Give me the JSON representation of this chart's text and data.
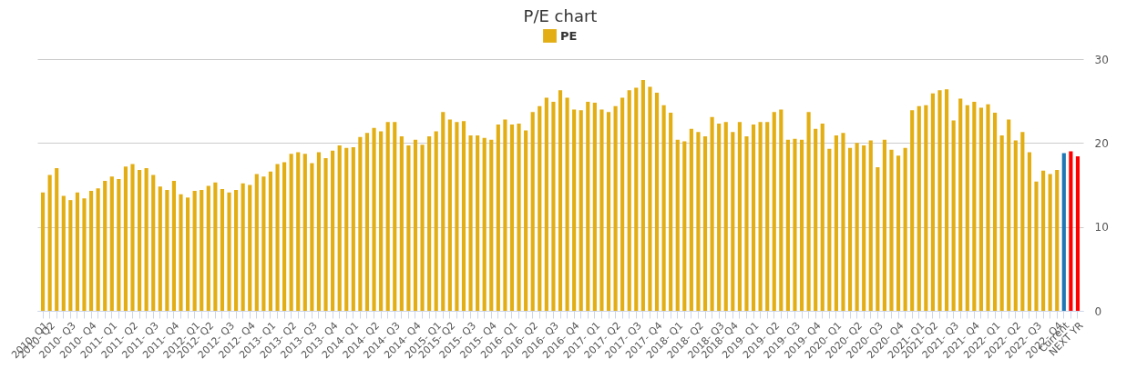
{
  "chart_data": {
    "type": "bar",
    "title": "P/E chart",
    "categories": [
      "2010- Q1",
      "2010- Q2",
      null,
      null,
      "2010- Q3",
      null,
      null,
      "2010- Q4",
      null,
      null,
      "2011- Q1",
      null,
      null,
      "2011- Q2",
      null,
      null,
      "2011- Q3",
      null,
      null,
      "2011- Q4",
      null,
      null,
      "2012- Q1",
      null,
      "2012- Q2",
      null,
      null,
      "2012- Q3",
      null,
      null,
      "2012- Q4",
      null,
      null,
      "2013- Q1",
      null,
      null,
      "2013- Q2",
      null,
      null,
      "2013- Q3",
      null,
      null,
      "2013- Q4",
      null,
      null,
      "2014- Q1",
      null,
      null,
      "2014- Q2",
      null,
      null,
      "2014- Q3",
      null,
      null,
      "2014- Q4",
      null,
      null,
      "2015- Q1",
      null,
      "2015- Q2",
      null,
      null,
      "2015- Q3",
      null,
      null,
      "2015- Q4",
      null,
      null,
      "2016- Q1",
      null,
      null,
      "2016- Q2",
      null,
      null,
      "2016- Q3",
      null,
      null,
      "2016- Q4",
      null,
      null,
      "2017- Q1",
      null,
      null,
      "2017- Q2",
      null,
      null,
      "2017- Q3",
      null,
      null,
      "2017- Q4",
      null,
      null,
      "2018- Q1",
      null,
      null,
      "2018- Q2",
      null,
      null,
      "2018- Q3",
      null,
      "2018- Q4",
      null,
      null,
      "2019- Q1",
      null,
      null,
      "2019- Q2",
      null,
      null,
      "2019- Q3",
      null,
      null,
      "2019- Q4",
      null,
      null,
      "2020- Q1",
      null,
      null,
      "2020- Q2",
      null,
      null,
      "2020- Q3",
      null,
      null,
      "2020- Q4",
      null,
      null,
      "2021- Q1",
      null,
      "2021- Q2",
      null,
      null,
      "2021- Q3",
      null,
      null,
      "2021- Q4",
      null,
      null,
      "2022- Q1",
      null,
      null,
      "2022- Q2",
      null,
      null,
      "2022- Q3",
      null,
      null,
      "2022- Q4",
      "Current",
      null,
      "NEXT YR"
    ],
    "series": [
      {
        "name": "PE",
        "color": "#e3ae14",
        "values": [
          14.1,
          16.2,
          17.0,
          13.7,
          13.2,
          14.1,
          13.4,
          14.3,
          14.6,
          15.5,
          16.0,
          15.7,
          17.2,
          17.5,
          16.8,
          17.0,
          16.2,
          14.8,
          14.4,
          15.5,
          13.9,
          13.5,
          14.3,
          14.4,
          14.9,
          15.3,
          14.5,
          14.1,
          14.4,
          15.2,
          15.0,
          16.3,
          16.0,
          16.6,
          17.5,
          17.7,
          18.7,
          18.9,
          18.7,
          17.6,
          18.9,
          18.2,
          19.1,
          19.7,
          19.4,
          19.5,
          20.7,
          21.2,
          21.8,
          21.4,
          22.5,
          22.5,
          20.8,
          19.7,
          20.4,
          19.8,
          20.8,
          21.4,
          23.7,
          22.8,
          22.5,
          22.6,
          20.9,
          20.9,
          20.6,
          20.4,
          22.2,
          22.8,
          22.2,
          22.3,
          21.5,
          23.7,
          24.4,
          25.4,
          24.9,
          26.3,
          25.4,
          24.0,
          23.9,
          24.9,
          24.8,
          24.0,
          23.7,
          24.4,
          25.4,
          26.3,
          26.6,
          27.5,
          26.7,
          26.0,
          24.5,
          23.6,
          20.4,
          20.2,
          21.7,
          21.3,
          20.8,
          23.1,
          22.3,
          22.5,
          21.3,
          22.5,
          20.8,
          22.2,
          22.5,
          22.5,
          23.7,
          24.0,
          20.4,
          20.5,
          20.4,
          23.7,
          21.7,
          22.3,
          19.3,
          20.9,
          21.2,
          19.4,
          20.0,
          19.7,
          20.3,
          17.1,
          20.4,
          19.2,
          18.5,
          19.4,
          23.9,
          24.4,
          24.5,
          25.9,
          26.3,
          26.4,
          22.7,
          25.3,
          24.5,
          24.9,
          24.2,
          24.6,
          23.6,
          20.9,
          22.8,
          20.3,
          21.3,
          18.9,
          15.4,
          16.7,
          16.3,
          16.8,
          18.8,
          19.0,
          18.4
        ],
        "colors": [
          "#e3ae14",
          "#e3ae14",
          "#e3ae14",
          "#e3ae14",
          "#e3ae14",
          "#e3ae14",
          "#e3ae14",
          "#e3ae14",
          "#e3ae14",
          "#e3ae14",
          "#e3ae14",
          "#e3ae14",
          "#e3ae14",
          "#e3ae14",
          "#e3ae14",
          "#e3ae14",
          "#e3ae14",
          "#e3ae14",
          "#e3ae14",
          "#e3ae14",
          "#e3ae14",
          "#e3ae14",
          "#e3ae14",
          "#e3ae14",
          "#e3ae14",
          "#e3ae14",
          "#e3ae14",
          "#e3ae14",
          "#e3ae14",
          "#e3ae14",
          "#e3ae14",
          "#e3ae14",
          "#e3ae14",
          "#e3ae14",
          "#e3ae14",
          "#e3ae14",
          "#e3ae14",
          "#e3ae14",
          "#e3ae14",
          "#e3ae14",
          "#e3ae14",
          "#e3ae14",
          "#e3ae14",
          "#e3ae14",
          "#e3ae14",
          "#e3ae14",
          "#e3ae14",
          "#e3ae14",
          "#e3ae14",
          "#e3ae14",
          "#e3ae14",
          "#e3ae14",
          "#e3ae14",
          "#e3ae14",
          "#e3ae14",
          "#e3ae14",
          "#e3ae14",
          "#e3ae14",
          "#e3ae14",
          "#e3ae14",
          "#e3ae14",
          "#e3ae14",
          "#e3ae14",
          "#e3ae14",
          "#e3ae14",
          "#e3ae14",
          "#e3ae14",
          "#e3ae14",
          "#e3ae14",
          "#e3ae14",
          "#e3ae14",
          "#e3ae14",
          "#e3ae14",
          "#e3ae14",
          "#e3ae14",
          "#e3ae14",
          "#e3ae14",
          "#e3ae14",
          "#e3ae14",
          "#e3ae14",
          "#e3ae14",
          "#e3ae14",
          "#e3ae14",
          "#e3ae14",
          "#e3ae14",
          "#e3ae14",
          "#e3ae14",
          "#e3ae14",
          "#e3ae14",
          "#e3ae14",
          "#e3ae14",
          "#e3ae14",
          "#e3ae14",
          "#e3ae14",
          "#e3ae14",
          "#e3ae14",
          "#e3ae14",
          "#e3ae14",
          "#e3ae14",
          "#e3ae14",
          "#e3ae14",
          "#e3ae14",
          "#e3ae14",
          "#e3ae14",
          "#e3ae14",
          "#e3ae14",
          "#e3ae14",
          "#e3ae14",
          "#e3ae14",
          "#e3ae14",
          "#e3ae14",
          "#e3ae14",
          "#e3ae14",
          "#e3ae14",
          "#e3ae14",
          "#e3ae14",
          "#e3ae14",
          "#e3ae14",
          "#e3ae14",
          "#e3ae14",
          "#e3ae14",
          "#e3ae14",
          "#e3ae14",
          "#e3ae14",
          "#e3ae14",
          "#e3ae14",
          "#e3ae14",
          "#e3ae14",
          "#e3ae14",
          "#e3ae14",
          "#e3ae14",
          "#e3ae14",
          "#e3ae14",
          "#e3ae14",
          "#e3ae14",
          "#e3ae14",
          "#e3ae14",
          "#e3ae14",
          "#e3ae14",
          "#e3ae14",
          "#e3ae14",
          "#e3ae14",
          "#e3ae14",
          "#e3ae14",
          "#e3ae14",
          "#e3ae14",
          "#e3ae14",
          "#e3ae14",
          "#1f77b4",
          "#ff0000",
          "#ff0000"
        ]
      }
    ],
    "ylim": [
      0,
      30
    ],
    "yticks": [
      0,
      10,
      20,
      30
    ],
    "grid": true,
    "legend": "top"
  }
}
